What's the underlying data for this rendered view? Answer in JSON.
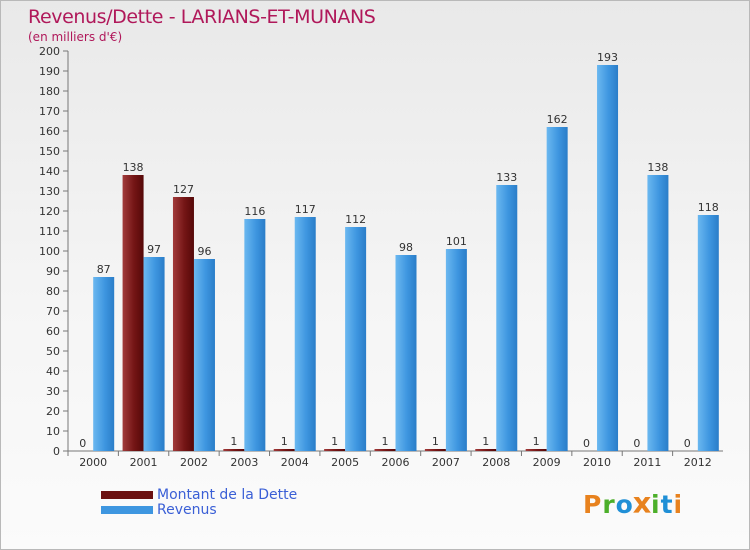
{
  "chart_data": {
    "type": "bar",
    "title": "Revenus/Dette - LARIANS-ET-MUNANS",
    "subtitle": "(en milliers d'€)",
    "xlabel": "",
    "ylabel": "",
    "ylim": [
      0,
      200
    ],
    "ytick_step": 10,
    "grid": false,
    "legend_position": "bottom-left",
    "categories": [
      "2000",
      "2001",
      "2002",
      "2003",
      "2004",
      "2005",
      "2006",
      "2007",
      "2008",
      "2009",
      "2010",
      "2011",
      "2012"
    ],
    "series": [
      {
        "name": "Montant de la Dette",
        "color": "#6b1010",
        "values": [
          0,
          138,
          127,
          1,
          1,
          1,
          1,
          1,
          1,
          1,
          0,
          0,
          0
        ]
      },
      {
        "name": "Revenus",
        "color": "#3e96e0",
        "values": [
          87,
          97,
          96,
          116,
          117,
          112,
          98,
          101,
          133,
          162,
          193,
          138,
          118
        ]
      }
    ]
  },
  "legend": {
    "items": [
      {
        "label": "Montant de la Dette",
        "color": "#6b1010"
      },
      {
        "label": "Revenus",
        "color": "#3e96e0"
      }
    ]
  },
  "brand": {
    "letters": [
      "P",
      "r",
      "o",
      "x",
      "i",
      "t",
      "i"
    ],
    "colors": [
      "#e8821e",
      "#4caf2a",
      "#1f8fd6",
      "#e8821e",
      "#4caf2a",
      "#1f8fd6",
      "#e8821e"
    ]
  }
}
